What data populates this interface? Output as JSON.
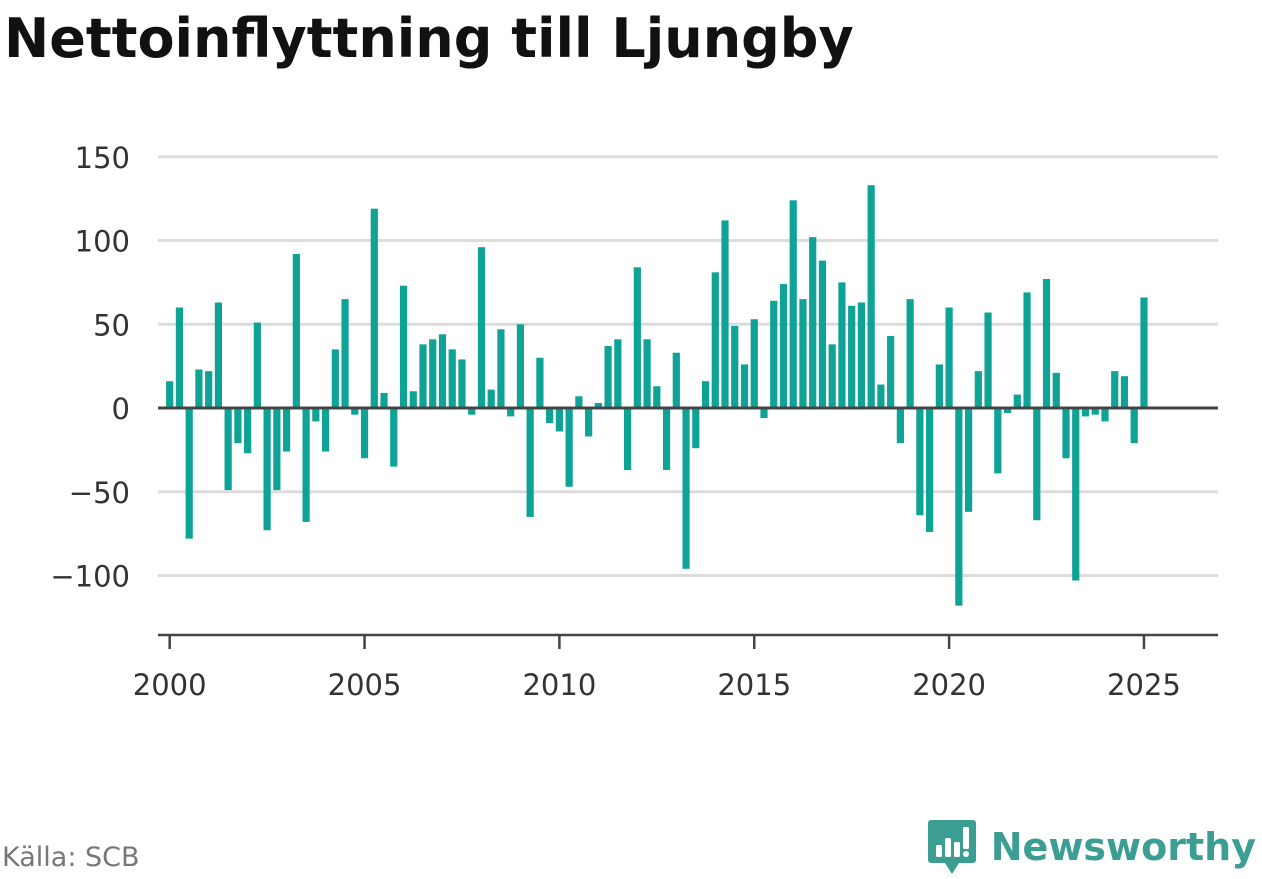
{
  "title": "Nettoinflyttning till Ljungby",
  "source": "Källa: SCB",
  "brand": {
    "name": "Newsworthy",
    "logo_icon": "newsworthy-logo-icon"
  },
  "colors": {
    "bar": "#0fa396",
    "grid": "#dcdcdc",
    "baseline": "#444444",
    "brand": "#3c9e93"
  },
  "chart_data": {
    "type": "bar",
    "title": "Nettoinflyttning till Ljungby",
    "xlabel": "",
    "ylabel": "",
    "x_start": 2000,
    "x_step": 0.25,
    "xlim": [
      1999.7,
      2026.9
    ],
    "ylim": [
      -135,
      150
    ],
    "yticks": [
      150,
      100,
      50,
      0,
      -50,
      -100
    ],
    "ytick_labels": [
      "150",
      "100",
      "50",
      "0",
      "−50",
      "−100"
    ],
    "xticks": [
      2000,
      2005,
      2010,
      2015,
      2020,
      2025
    ],
    "xtick_labels": [
      "2000",
      "2005",
      "2010",
      "2015",
      "2020",
      "2025"
    ],
    "grid": true,
    "legend": "none",
    "values": [
      16,
      60,
      -78,
      23,
      22,
      63,
      -49,
      -21,
      -27,
      51,
      -73,
      -49,
      -26,
      92,
      -68,
      -8,
      -26,
      35,
      65,
      -4,
      -30,
      119,
      9,
      -35,
      73,
      10,
      38,
      41,
      44,
      35,
      29,
      -4,
      96,
      11,
      47,
      -5,
      50,
      -65,
      30,
      -9,
      -14,
      -47,
      7,
      -17,
      3,
      37,
      41,
      -37,
      84,
      41,
      13,
      -37,
      33,
      -96,
      -24,
      16,
      81,
      112,
      49,
      26,
      53,
      -6,
      64,
      74,
      124,
      65,
      102,
      88,
      38,
      75,
      61,
      63,
      133,
      14,
      43,
      -21,
      65,
      -64,
      -74,
      26,
      60,
      -118,
      -62,
      22,
      57,
      -39,
      -3,
      8,
      69,
      -67,
      77,
      21,
      -30,
      -103,
      -5,
      -4,
      -8,
      22,
      19,
      -21,
      66
    ]
  }
}
